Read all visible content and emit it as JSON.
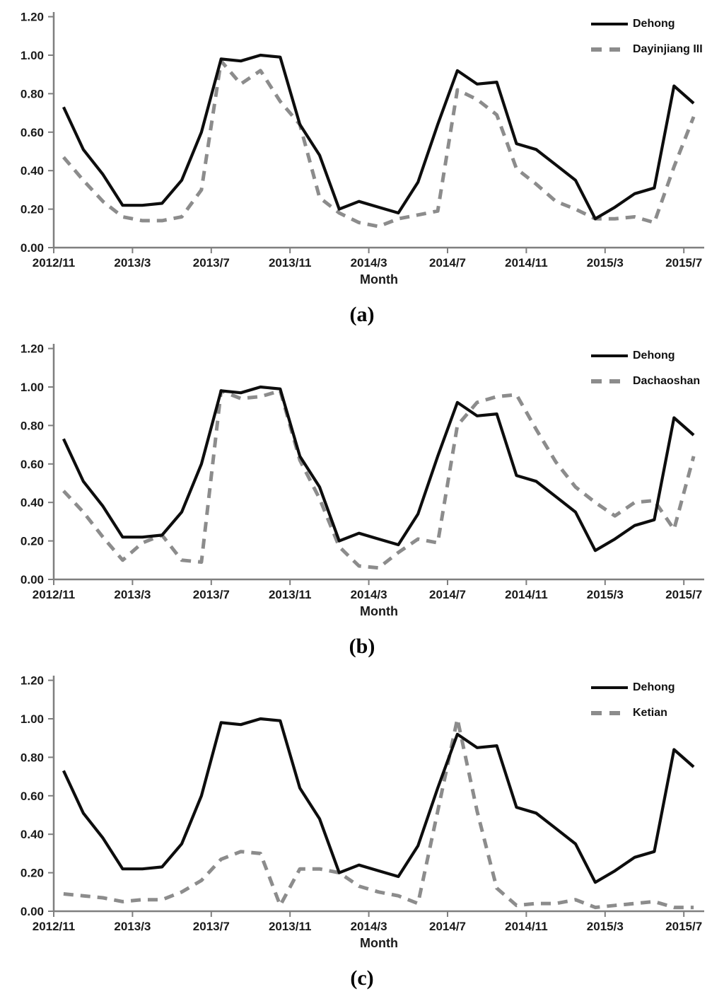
{
  "colors": {
    "dehong_line": "#0d0d0d",
    "comparison_line": "#8c8c8c",
    "axis": "#7f7f7f",
    "tick_text": "#1a1a1a"
  },
  "chart_data": [
    {
      "id": "a",
      "type": "line",
      "sublabel": "(a)",
      "xlabel": "Month",
      "ylim": [
        0,
        1.2
      ],
      "grid": false,
      "legend_position": "top-right",
      "y_ticks": [
        "0.00",
        "0.20",
        "0.40",
        "0.60",
        "0.80",
        "1.00",
        "1.20"
      ],
      "x_tick_labels": [
        "2012/11",
        "2013/3",
        "2013/7",
        "2013/11",
        "2014/3",
        "2014/7",
        "2014/11",
        "2015/3",
        "2015/7"
      ],
      "categories": [
        "2012/11",
        "2012/12",
        "2013/1",
        "2013/2",
        "2013/3",
        "2013/4",
        "2013/5",
        "2013/6",
        "2013/7",
        "2013/8",
        "2013/9",
        "2013/10",
        "2013/11",
        "2013/12",
        "2014/1",
        "2014/2",
        "2014/3",
        "2014/4",
        "2014/5",
        "2014/6",
        "2014/7",
        "2014/8",
        "2014/9",
        "2014/10",
        "2014/11",
        "2014/12",
        "2015/1",
        "2015/2",
        "2015/3",
        "2015/4",
        "2015/5",
        "2015/6",
        "2015/7"
      ],
      "series": [
        {
          "name": "Dehong",
          "style": "solid",
          "color": "#0d0d0d",
          "values": [
            0.73,
            0.51,
            0.38,
            0.22,
            0.22,
            0.23,
            0.35,
            0.6,
            0.98,
            0.97,
            1.0,
            0.99,
            0.64,
            0.48,
            0.2,
            0.24,
            0.21,
            0.18,
            0.34,
            0.64,
            0.92,
            0.85,
            0.86,
            0.54,
            0.51,
            0.43,
            0.35,
            0.15,
            0.21,
            0.28,
            0.31,
            0.84,
            0.75
          ]
        },
        {
          "name": "Dayinjiang III",
          "style": "dashed",
          "color": "#8c8c8c",
          "values": [
            0.47,
            0.35,
            0.24,
            0.16,
            0.14,
            0.14,
            0.16,
            0.3,
            0.97,
            0.85,
            0.92,
            0.76,
            0.64,
            0.26,
            0.18,
            0.13,
            0.11,
            0.15,
            0.17,
            0.19,
            0.82,
            0.77,
            0.69,
            0.41,
            0.33,
            0.24,
            0.2,
            0.15,
            0.15,
            0.16,
            0.13,
            0.42,
            0.68
          ]
        }
      ]
    },
    {
      "id": "b",
      "type": "line",
      "sublabel": "(b)",
      "xlabel": "Month",
      "ylim": [
        0,
        1.2
      ],
      "grid": false,
      "legend_position": "top-right",
      "y_ticks": [
        "0.00",
        "0.20",
        "0.40",
        "0.60",
        "0.80",
        "1.00",
        "1.20"
      ],
      "x_tick_labels": [
        "2012/11",
        "2013/3",
        "2013/7",
        "2013/11",
        "2014/3",
        "2014/7",
        "2014/11",
        "2015/3",
        "2015/7"
      ],
      "categories": [
        "2012/11",
        "2012/12",
        "2013/1",
        "2013/2",
        "2013/3",
        "2013/4",
        "2013/5",
        "2013/6",
        "2013/7",
        "2013/8",
        "2013/9",
        "2013/10",
        "2013/11",
        "2013/12",
        "2014/1",
        "2014/2",
        "2014/3",
        "2014/4",
        "2014/5",
        "2014/6",
        "2014/7",
        "2014/8",
        "2014/9",
        "2014/10",
        "2014/11",
        "2014/12",
        "2015/1",
        "2015/2",
        "2015/3",
        "2015/4",
        "2015/5",
        "2015/6",
        "2015/7"
      ],
      "series": [
        {
          "name": "Dehong",
          "style": "solid",
          "color": "#0d0d0d",
          "values": [
            0.73,
            0.51,
            0.38,
            0.22,
            0.22,
            0.23,
            0.35,
            0.6,
            0.98,
            0.97,
            1.0,
            0.99,
            0.64,
            0.48,
            0.2,
            0.24,
            0.21,
            0.18,
            0.34,
            0.64,
            0.92,
            0.85,
            0.86,
            0.54,
            0.51,
            0.43,
            0.35,
            0.15,
            0.21,
            0.28,
            0.31,
            0.84,
            0.75
          ]
        },
        {
          "name": "Dachaoshan",
          "style": "dashed",
          "color": "#8c8c8c",
          "values": [
            0.46,
            0.35,
            0.22,
            0.1,
            0.19,
            0.23,
            0.1,
            0.09,
            0.98,
            0.94,
            0.95,
            0.98,
            0.62,
            0.42,
            0.17,
            0.07,
            0.06,
            0.14,
            0.21,
            0.19,
            0.8,
            0.92,
            0.95,
            0.96,
            0.78,
            0.61,
            0.48,
            0.4,
            0.33,
            0.4,
            0.41,
            0.26,
            0.64
          ]
        }
      ]
    },
    {
      "id": "c",
      "type": "line",
      "sublabel": "(c)",
      "xlabel": "Month",
      "ylim": [
        0,
        1.2
      ],
      "grid": false,
      "legend_position": "top-right",
      "y_ticks": [
        "0.00",
        "0.20",
        "0.40",
        "0.60",
        "0.80",
        "1.00",
        "1.20"
      ],
      "x_tick_labels": [
        "2012/11",
        "2013/3",
        "2013/7",
        "2013/11",
        "2014/3",
        "2014/7",
        "2014/11",
        "2015/3",
        "2015/7"
      ],
      "categories": [
        "2012/11",
        "2012/12",
        "2013/1",
        "2013/2",
        "2013/3",
        "2013/4",
        "2013/5",
        "2013/6",
        "2013/7",
        "2013/8",
        "2013/9",
        "2013/10",
        "2013/11",
        "2013/12",
        "2014/1",
        "2014/2",
        "2014/3",
        "2014/4",
        "2014/5",
        "2014/6",
        "2014/7",
        "2014/8",
        "2014/9",
        "2014/10",
        "2014/11",
        "2014/12",
        "2015/1",
        "2015/2",
        "2015/3",
        "2015/4",
        "2015/5",
        "2015/6",
        "2015/7"
      ],
      "series": [
        {
          "name": "Dehong",
          "style": "solid",
          "color": "#0d0d0d",
          "values": [
            0.73,
            0.51,
            0.38,
            0.22,
            0.22,
            0.23,
            0.35,
            0.6,
            0.98,
            0.97,
            1.0,
            0.99,
            0.64,
            0.48,
            0.2,
            0.24,
            0.21,
            0.18,
            0.34,
            0.64,
            0.92,
            0.85,
            0.86,
            0.54,
            0.51,
            0.43,
            0.35,
            0.15,
            0.21,
            0.28,
            0.31,
            0.84,
            0.75
          ]
        },
        {
          "name": "Ketian",
          "style": "dashed",
          "color": "#8c8c8c",
          "values": [
            0.09,
            0.08,
            0.07,
            0.05,
            0.06,
            0.06,
            0.1,
            0.16,
            0.27,
            0.31,
            0.3,
            0.03,
            0.22,
            0.22,
            0.2,
            0.13,
            0.1,
            0.08,
            0.04,
            0.52,
            1.0,
            0.52,
            0.12,
            0.03,
            0.04,
            0.04,
            0.06,
            0.02,
            0.03,
            0.04,
            0.05,
            0.02,
            0.02
          ]
        }
      ]
    }
  ]
}
